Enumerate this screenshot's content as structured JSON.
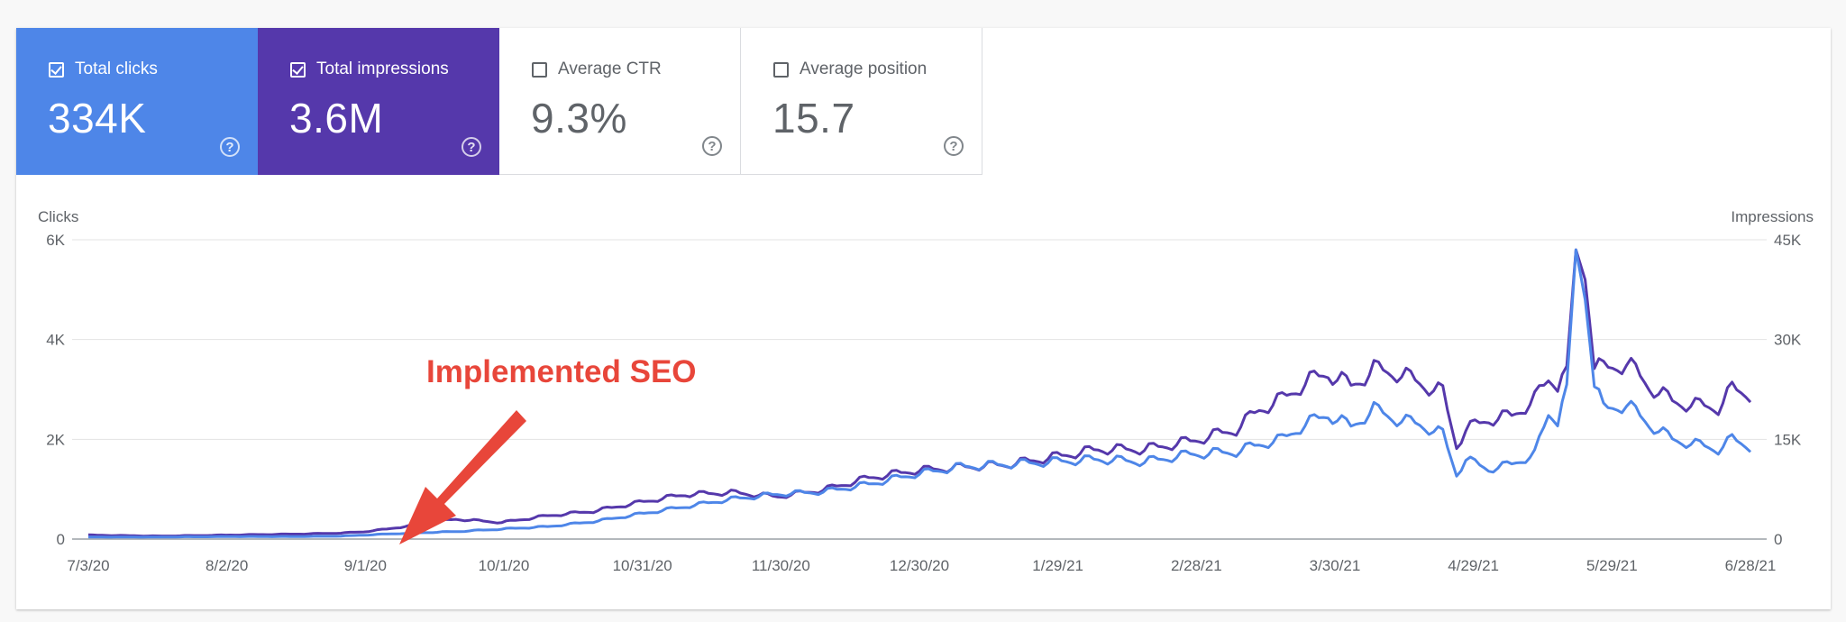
{
  "cards": [
    {
      "label": "Total clicks",
      "value": "334K",
      "checked": true,
      "color": "#4e86e8"
    },
    {
      "label": "Total impressions",
      "value": "3.6M",
      "checked": true,
      "color": "#5538ab"
    },
    {
      "label": "Average CTR",
      "value": "9.3%",
      "checked": false
    },
    {
      "label": "Average position",
      "value": "15.7",
      "checked": false
    }
  ],
  "help_icon_glyph": "?",
  "annotation": {
    "text": "Implemented SEO",
    "color": "#e8463a"
  },
  "chart_data": {
    "type": "line",
    "left_axis": {
      "label": "Clicks",
      "ticks": [
        "0",
        "2K",
        "4K",
        "6K"
      ],
      "range": [
        0,
        6000
      ]
    },
    "right_axis": {
      "label": "Impressions",
      "ticks": [
        "0",
        "15K",
        "30K",
        "45K"
      ],
      "range": [
        0,
        45000
      ]
    },
    "x_tick_labels": [
      "7/3/20",
      "8/2/20",
      "9/1/20",
      "10/1/20",
      "10/31/20",
      "11/30/20",
      "12/30/20",
      "1/29/21",
      "2/28/21",
      "3/30/21",
      "4/29/21",
      "5/29/21",
      "6/28/21"
    ],
    "x_range_days": [
      0,
      362
    ],
    "grid": true,
    "series": [
      {
        "name": "Total clicks",
        "axis": "left",
        "color": "#4e86e8",
        "points": [
          [
            0,
            40
          ],
          [
            15,
            40
          ],
          [
            30,
            50
          ],
          [
            45,
            50
          ],
          [
            55,
            60
          ],
          [
            60,
            80
          ],
          [
            65,
            100
          ],
          [
            70,
            120
          ],
          [
            80,
            150
          ],
          [
            90,
            200
          ],
          [
            100,
            250
          ],
          [
            110,
            350
          ],
          [
            120,
            500
          ],
          [
            130,
            650
          ],
          [
            140,
            800
          ],
          [
            150,
            900
          ],
          [
            160,
            950
          ],
          [
            170,
            1100
          ],
          [
            180,
            1300
          ],
          [
            190,
            1450
          ],
          [
            200,
            1500
          ],
          [
            210,
            1550
          ],
          [
            220,
            1600
          ],
          [
            230,
            1550
          ],
          [
            240,
            1700
          ],
          [
            250,
            1750
          ],
          [
            255,
            1900
          ],
          [
            260,
            2000
          ],
          [
            265,
            2300
          ],
          [
            270,
            2500
          ],
          [
            275,
            2250
          ],
          [
            280,
            2600
          ],
          [
            285,
            2400
          ],
          [
            290,
            2300
          ],
          [
            295,
            2100
          ],
          [
            298,
            1300
          ],
          [
            300,
            1600
          ],
          [
            305,
            1400
          ],
          [
            310,
            1500
          ],
          [
            315,
            1700
          ],
          [
            318,
            2500
          ],
          [
            320,
            2400
          ],
          [
            322,
            3100
          ],
          [
            324,
            5800
          ],
          [
            326,
            4800
          ],
          [
            328,
            3100
          ],
          [
            330,
            2600
          ],
          [
            335,
            2700
          ],
          [
            340,
            2300
          ],
          [
            345,
            2000
          ],
          [
            350,
            1900
          ],
          [
            355,
            1800
          ],
          [
            358,
            2000
          ],
          [
            362,
            1850
          ]
        ]
      },
      {
        "name": "Total impressions",
        "axis": "right",
        "color": "#5538ab",
        "points": [
          [
            0,
            600
          ],
          [
            15,
            450
          ],
          [
            30,
            600
          ],
          [
            45,
            750
          ],
          [
            55,
            900
          ],
          [
            60,
            1100
          ],
          [
            65,
            1500
          ],
          [
            70,
            2000
          ],
          [
            80,
            3000
          ],
          [
            90,
            2500
          ],
          [
            100,
            3500
          ],
          [
            110,
            4200
          ],
          [
            120,
            5500
          ],
          [
            130,
            6700
          ],
          [
            140,
            7000
          ],
          [
            150,
            6400
          ],
          [
            160,
            7400
          ],
          [
            170,
            9200
          ],
          [
            180,
            10300
          ],
          [
            190,
            10800
          ],
          [
            200,
            11200
          ],
          [
            210,
            12300
          ],
          [
            220,
            13500
          ],
          [
            230,
            13500
          ],
          [
            240,
            14700
          ],
          [
            250,
            16500
          ],
          [
            255,
            19500
          ],
          [
            260,
            21000
          ],
          [
            265,
            23500
          ],
          [
            270,
            25000
          ],
          [
            275,
            23000
          ],
          [
            280,
            25500
          ],
          [
            285,
            25000
          ],
          [
            290,
            23500
          ],
          [
            295,
            22000
          ],
          [
            298,
            14000
          ],
          [
            300,
            16500
          ],
          [
            305,
            18000
          ],
          [
            310,
            18500
          ],
          [
            315,
            21000
          ],
          [
            318,
            24000
          ],
          [
            320,
            23500
          ],
          [
            322,
            26000
          ],
          [
            324,
            43500
          ],
          [
            326,
            39000
          ],
          [
            328,
            26000
          ],
          [
            330,
            25500
          ],
          [
            335,
            26500
          ],
          [
            340,
            23000
          ],
          [
            345,
            20700
          ],
          [
            350,
            20100
          ],
          [
            355,
            19800
          ],
          [
            358,
            22500
          ],
          [
            362,
            21800
          ]
        ]
      }
    ]
  }
}
